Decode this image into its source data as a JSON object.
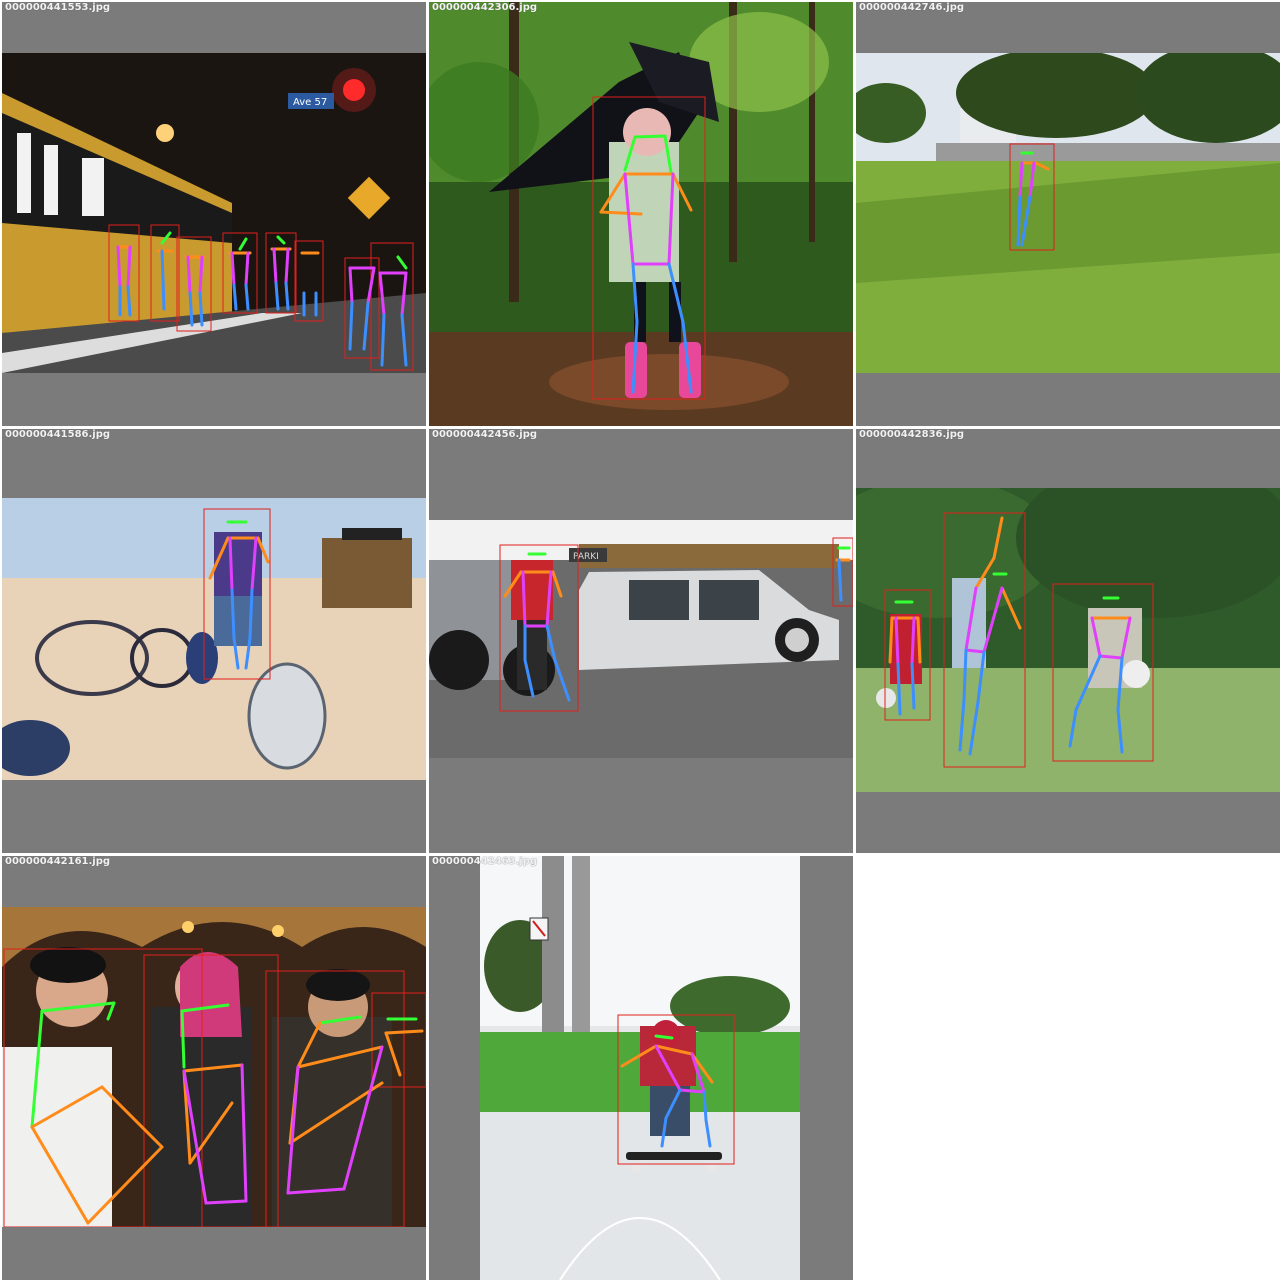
{
  "tiles": [
    {
      "filename": "000000441553.jpg",
      "sign_text": "Ave 57"
    },
    {
      "filename": "000000442306.jpg"
    },
    {
      "filename": "000000442746.jpg"
    },
    {
      "filename": "000000441586.jpg"
    },
    {
      "filename": "000000442456.jpg",
      "sign_text": "PARKI"
    },
    {
      "filename": "000000442836.jpg"
    },
    {
      "filename": "000000442161.jpg"
    },
    {
      "filename": "000000442463.jpg"
    }
  ],
  "colors": {
    "background_pad": "#7b7b7b",
    "box": "#e0201c",
    "face": "#33ff33",
    "arm": "#ff8c1a",
    "torso": "#e040fb",
    "leg": "#3d8fff"
  }
}
